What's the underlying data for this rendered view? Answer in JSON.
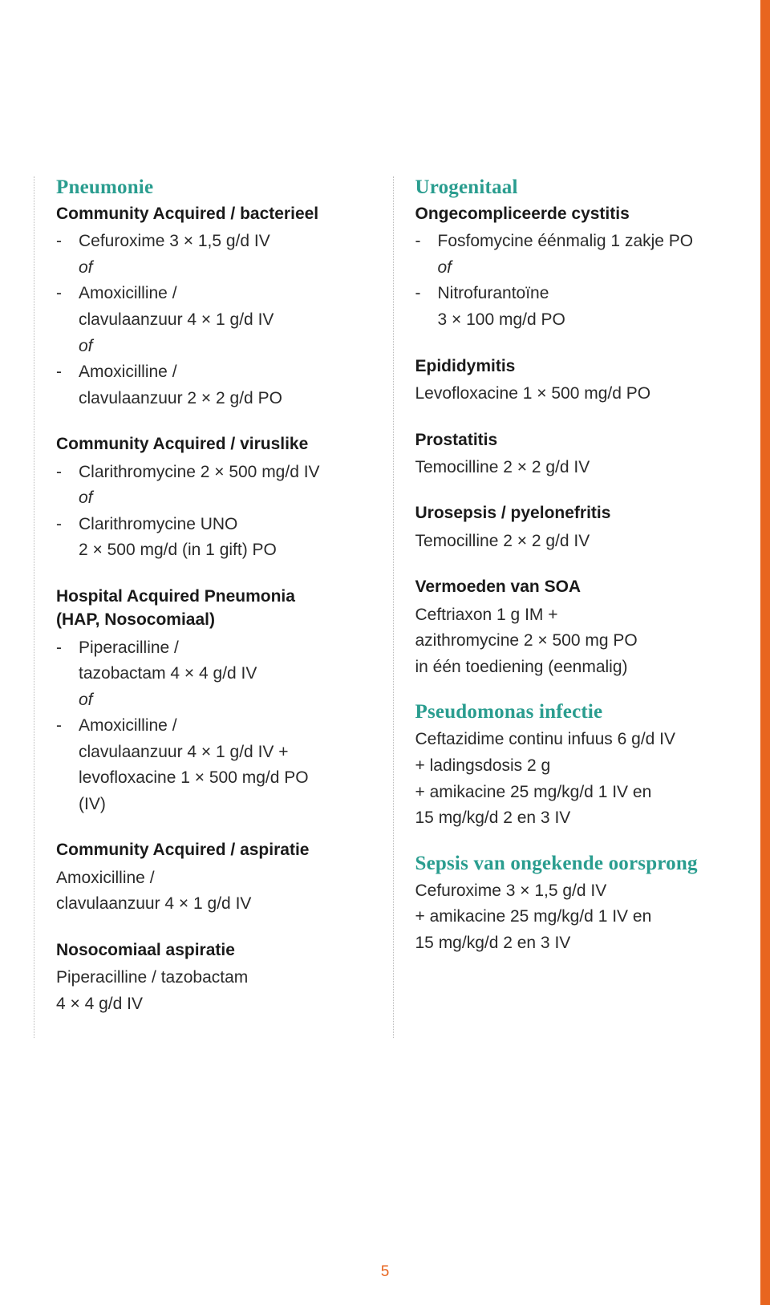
{
  "colors": {
    "heading": "#2a9d8f",
    "text": "#2a2a2a",
    "accent": "#e8651f",
    "background": "#ffffff",
    "divider": "#bbbbbb"
  },
  "typography": {
    "heading_fontsize": 25,
    "body_fontsize": 21,
    "subheading_weight": 700
  },
  "page_number": "5",
  "left": {
    "h_pneumonie": "Pneumonie",
    "sh_cab": "Community Acquired / bacterieel",
    "cab_1": "Cefuroxime 3 × 1,5 g/d IV",
    "of": "of",
    "cab_2a": "Amoxicilline /",
    "cab_2b": "clavulaanzuur 4 × 1 g/d IV",
    "cab_3a": "Amoxicilline /",
    "cab_3b": "clavulaanzuur 2 × 2 g/d PO",
    "sh_cav": "Community Acquired / viruslike",
    "cav_1": "Clarithromycine 2 × 500 mg/d IV",
    "cav_2a": "Clarithromycine UNO",
    "cav_2b": "2 × 500 mg/d (in 1 gift) PO",
    "sh_hap_a": "Hospital Acquired Pneumonia",
    "sh_hap_b": "(HAP, Nosocomiaal)",
    "hap_1a": "Piperacilline /",
    "hap_1b": "tazobactam 4 × 4 g/d IV",
    "hap_2a": "Amoxicilline /",
    "hap_2b": "clavulaanzuur 4 × 1 g/d IV +",
    "hap_2c": "levofloxacine 1 × 500 mg/d PO",
    "hap_2d": "(IV)",
    "sh_caa": "Community Acquired / aspiratie",
    "caa_1": "Amoxicilline /",
    "caa_2": "clavulaanzuur 4 × 1 g/d IV",
    "sh_nos": "Nosocomiaal aspiratie",
    "nos_1": "Piperacilline / tazobactam",
    "nos_2": "4 × 4 g/d IV"
  },
  "right": {
    "h_uro": "Urogenitaal",
    "sh_cyst": "Ongecompliceerde cystitis",
    "cyst_1": "Fosfomycine éénmalig 1 zakje PO",
    "of": "of",
    "cyst_2a": "Nitrofurantoïne",
    "cyst_2b": "3 × 100 mg/d PO",
    "sh_epid": "Epididymitis",
    "epid_1": "Levofloxacine 1 × 500 mg/d PO",
    "sh_prost": "Prostatitis",
    "prost_1": "Temocilline 2 × 2 g/d IV",
    "sh_urosep": "Urosepsis / pyelonefritis",
    "urosep_1": "Temocilline 2 × 2 g/d IV",
    "sh_soa": "Vermoeden van SOA",
    "soa_1": "Ceftriaxon 1 g IM +",
    "soa_2": "azithromycine 2 × 500 mg PO",
    "soa_3": "in één toediening (eenmalig)",
    "h_pseudo": "Pseudomonas infectie",
    "pseudo_1": "Ceftazidime continu infuus 6 g/d IV",
    "pseudo_2": "+ ladingsdosis 2 g",
    "pseudo_3": "+ amikacine 25 mg/kg/d 1 IV en",
    "pseudo_4": "15 mg/kg/d 2 en 3 IV",
    "h_sepsis": "Sepsis van ongekende oorsprong",
    "sepsis_1": "Cefuroxime 3 × 1,5 g/d IV",
    "sepsis_2": "+ amikacine 25 mg/kg/d 1 IV en",
    "sepsis_3": "15 mg/kg/d 2 en 3 IV"
  }
}
